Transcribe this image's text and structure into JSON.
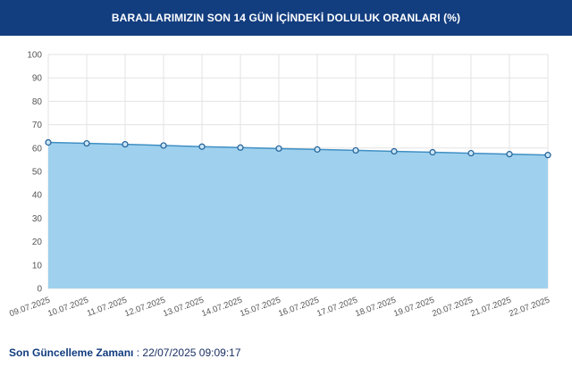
{
  "header": {
    "title": "BARAJLARIMIZIN SON 14 GÜN İÇİNDEKİ DOLULUK ORANLARI (%)"
  },
  "chart_data": {
    "type": "area",
    "title": "BARAJLARIMIZIN SON 14 GÜN İÇİNDEKİ DOLULUK ORANLARI (%)",
    "categories": [
      "09.07.2025",
      "10.07.2025",
      "11.07.2025",
      "12.07.2025",
      "13.07.2025",
      "14.07.2025",
      "15.07.2025",
      "16.07.2025",
      "17.07.2025",
      "18.07.2025",
      "19.07.2025",
      "20.07.2025",
      "21.07.2025",
      "22.07.2025"
    ],
    "values": [
      62.4,
      62.0,
      61.6,
      61.1,
      60.6,
      60.2,
      59.8,
      59.4,
      59.0,
      58.6,
      58.2,
      57.8,
      57.4,
      57.0
    ],
    "ylim": [
      0,
      100
    ],
    "yticks": [
      "0",
      "10",
      "20",
      "30",
      "40",
      "50",
      "60",
      "70",
      "80",
      "90",
      "100"
    ],
    "grid": true,
    "colors": {
      "fill": "#9fd1ee",
      "line": "#3f8fc4",
      "marker_stroke": "#1f5f96",
      "marker_fill": "#c9e5f6",
      "grid": "#e3e3e3",
      "axis_text": "#555555"
    }
  },
  "footer": {
    "label": "Son Güncelleme Zamanı",
    "separator": " : ",
    "value": "22/07/2025 09:09:17"
  }
}
